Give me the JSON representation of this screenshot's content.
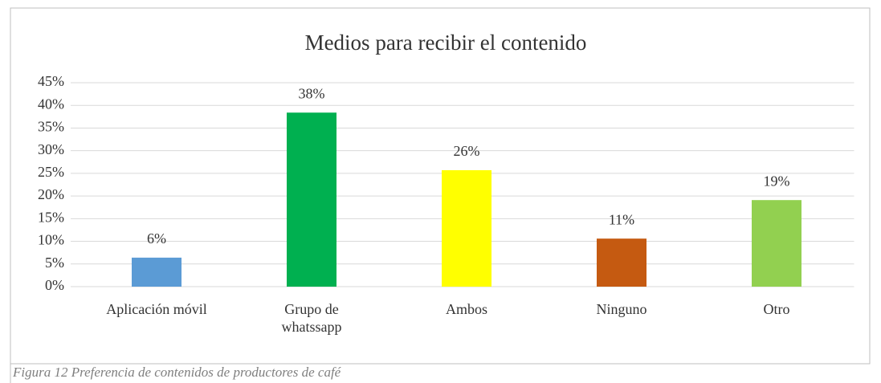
{
  "chart_data": {
    "type": "bar",
    "title": "Medios para recibir el contenido",
    "categories": [
      "Aplicación móvil",
      "Grupo de whatssapp",
      "Ambos",
      "Ninguno",
      "Otro"
    ],
    "values": [
      6.4,
      38.4,
      25.7,
      10.6,
      19.1
    ],
    "value_labels": [
      "6%",
      "38%",
      "26%",
      "11%",
      "19%"
    ],
    "colors": [
      "#5b9bd5",
      "#00b050",
      "#ffff00",
      "#c55a11",
      "#92d050"
    ],
    "ylim": [
      0,
      45
    ],
    "yticks": [
      {
        "value": 0,
        "label": "0%"
      },
      {
        "value": 5,
        "label": "5%"
      },
      {
        "value": 10,
        "label": "10%"
      },
      {
        "value": 15,
        "label": "15%"
      },
      {
        "value": 20,
        "label": "20%"
      },
      {
        "value": 25,
        "label": "25%"
      },
      {
        "value": 30,
        "label": "30%"
      },
      {
        "value": 35,
        "label": "35%"
      },
      {
        "value": 40,
        "label": "40%"
      },
      {
        "value": 45,
        "label": "45%"
      }
    ],
    "grid": true
  },
  "caption": "Figura 12 Preferencia de contenidos de productores de café"
}
